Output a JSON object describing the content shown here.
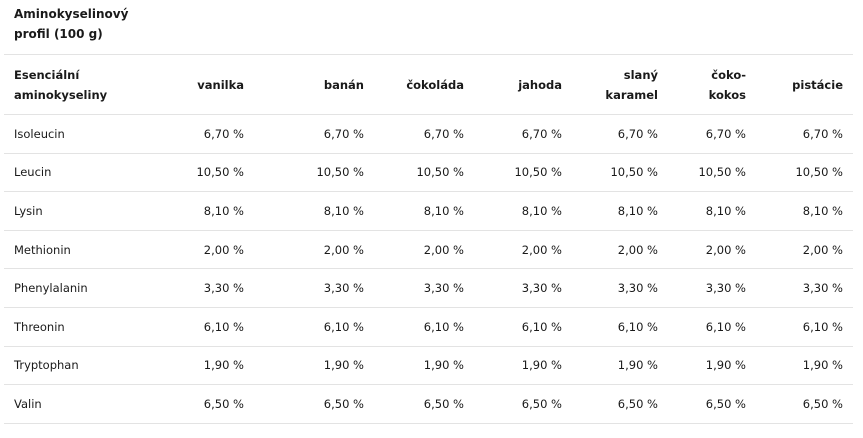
{
  "caption": {
    "line1": "Aminokyselinový",
    "line2": "profil (100 g)"
  },
  "header": {
    "first_line1": "Esenciální",
    "first_line2": "aminokyseliny",
    "columns": [
      {
        "line1": "vanilka",
        "line2": ""
      },
      {
        "line1": "banán",
        "line2": ""
      },
      {
        "line1": "čokoláda",
        "line2": ""
      },
      {
        "line1": "jahoda",
        "line2": ""
      },
      {
        "line1": "slaný",
        "line2": "karamel"
      },
      {
        "line1": "čoko-",
        "line2": "kokos"
      },
      {
        "line1": "pistácie",
        "line2": ""
      }
    ]
  },
  "rows": [
    {
      "name": "Isoleucin",
      "values": [
        "6,70 %",
        "6,70 %",
        "6,70 %",
        "6,70 %",
        "6,70 %",
        "6,70 %",
        "6,70 %"
      ]
    },
    {
      "name": "Leucin",
      "values": [
        "10,50 %",
        "10,50 %",
        "10,50 %",
        "10,50 %",
        "10,50 %",
        "10,50 %",
        "10,50 %"
      ]
    },
    {
      "name": "Lysin",
      "values": [
        "8,10 %",
        "8,10 %",
        "8,10 %",
        "8,10 %",
        "8,10 %",
        "8,10 %",
        "8,10 %"
      ]
    },
    {
      "name": "Methionin",
      "values": [
        "2,00 %",
        "2,00 %",
        "2,00 %",
        "2,00 %",
        "2,00 %",
        "2,00 %",
        "2,00 %"
      ]
    },
    {
      "name": "Phenylalanin",
      "values": [
        "3,30 %",
        "3,30 %",
        "3,30 %",
        "3,30 %",
        "3,30 %",
        "3,30 %",
        "3,30 %"
      ]
    },
    {
      "name": "Threonin",
      "values": [
        "6,10 %",
        "6,10 %",
        "6,10 %",
        "6,10 %",
        "6,10 %",
        "6,10 %",
        "6,10 %"
      ]
    },
    {
      "name": "Tryptophan",
      "values": [
        "1,90 %",
        "1,90 %",
        "1,90 %",
        "1,90 %",
        "1,90 %",
        "1,90 %",
        "1,90 %"
      ]
    },
    {
      "name": "Valin",
      "values": [
        "6,50 %",
        "6,50 %",
        "6,50 %",
        "6,50 %",
        "6,50 %",
        "6,50 %",
        "6,50 %"
      ]
    }
  ],
  "colors": {
    "text": "#1a1a1a",
    "border": "#e3e3e3",
    "background": "#ffffff"
  }
}
